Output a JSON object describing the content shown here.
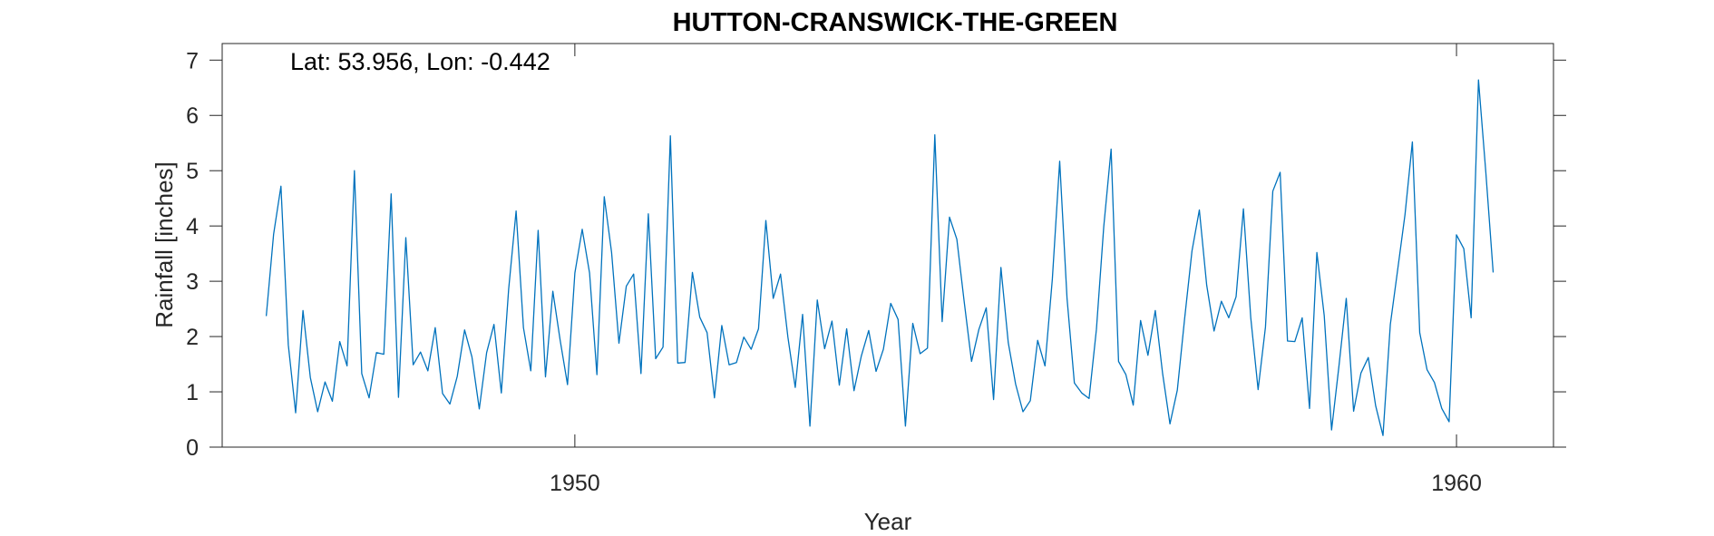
{
  "chart_data": {
    "type": "line",
    "title": "HUTTON-CRANSWICK-THE-GREEN",
    "xlabel": "Year",
    "ylabel": "Rainfall [inches]",
    "annotation": "Lat: 53.956, Lon: -0.442",
    "xlim": [
      1946,
      1961.1
    ],
    "ylim": [
      0,
      7.3
    ],
    "xticks": [
      1950,
      1960
    ],
    "yticks": [
      0,
      1,
      2,
      3,
      4,
      5,
      6,
      7
    ],
    "grid": false,
    "line_color": "#0072BD",
    "series": [
      {
        "x_start": 1946.5,
        "x_step": 0.08333,
        "values": [
          2.37,
          3.85,
          4.72,
          1.85,
          0.62,
          2.47,
          1.26,
          0.64,
          1.18,
          0.83,
          1.91,
          1.47,
          5.0,
          1.33,
          0.89,
          1.71,
          1.68,
          4.58,
          0.9,
          3.79,
          1.49,
          1.72,
          1.38,
          2.16,
          0.97,
          0.78,
          1.28,
          2.12,
          1.63,
          0.69,
          1.71,
          2.22,
          0.98,
          2.86,
          4.27,
          2.16,
          1.38,
          3.92,
          1.27,
          2.82,
          1.93,
          1.13,
          3.15,
          3.94,
          3.15,
          1.31,
          4.53,
          3.52,
          1.88,
          2.91,
          3.13,
          1.33,
          4.22,
          1.6,
          1.81,
          5.63,
          1.52,
          1.53,
          3.16,
          2.35,
          2.07,
          0.89,
          2.2,
          1.49,
          1.53,
          1.99,
          1.77,
          2.14,
          4.1,
          2.69,
          3.13,
          1.99,
          1.08,
          2.4,
          0.38,
          2.66,
          1.78,
          2.28,
          1.12,
          2.14,
          1.02,
          1.65,
          2.11,
          1.37,
          1.77,
          2.6,
          2.31,
          0.38,
          2.24,
          1.69,
          1.79,
          5.65,
          2.27,
          4.16,
          3.76,
          2.63,
          1.55,
          2.13,
          2.52,
          0.86,
          3.25,
          1.89,
          1.14,
          0.64,
          0.84,
          1.93,
          1.47,
          3.04,
          5.17,
          2.69,
          1.16,
          0.98,
          0.88,
          2.13,
          3.99,
          5.39,
          1.55,
          1.31,
          0.76,
          2.29,
          1.66,
          2.47,
          1.33,
          0.42,
          1.03,
          2.33,
          3.55,
          4.29,
          2.93,
          2.1,
          2.64,
          2.34,
          2.72,
          4.31,
          2.34,
          1.04,
          2.17,
          4.63,
          4.97,
          1.92,
          1.91,
          2.34,
          0.7,
          3.52,
          2.38,
          0.31,
          1.46,
          2.69,
          0.65,
          1.34,
          1.62,
          0.75,
          0.21,
          2.22,
          3.21,
          4.21,
          5.52,
          2.07,
          1.4,
          1.17,
          0.7,
          0.46,
          3.84,
          3.59,
          2.34,
          6.64,
          4.97,
          3.16
        ]
      }
    ]
  }
}
